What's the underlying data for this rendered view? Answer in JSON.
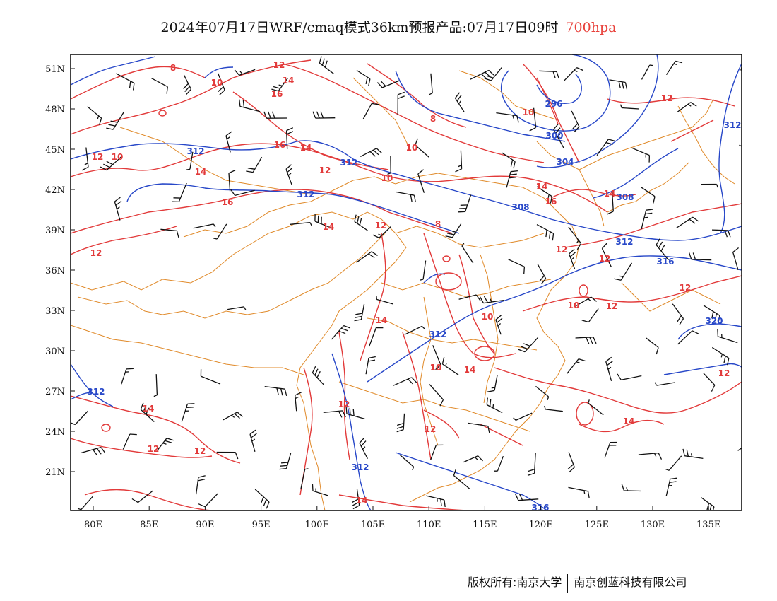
{
  "title": {
    "main": "2024年07月17日WRF/cmaq模式36km预报产品:07月17日09时",
    "level": "700hpa",
    "level_color": "#e8413b"
  },
  "axes": {
    "lat_labels": [
      "51N",
      "48N",
      "45N",
      "42N",
      "39N",
      "36N",
      "33N",
      "30N",
      "27N",
      "24N",
      "21N"
    ],
    "lon_labels": [
      "80E",
      "85E",
      "90E",
      "95E",
      "100E",
      "105E",
      "110E",
      "115E",
      "120E",
      "125E",
      "130E",
      "135E"
    ]
  },
  "contours": {
    "temperature_color": "#e23a3a",
    "height_color": "#2747c8",
    "border_color": "#e08a2a",
    "temperature_labels": [
      "8",
      "10",
      "12",
      "14",
      "16",
      "12",
      "14",
      "10",
      "16",
      "14",
      "12",
      "8",
      "10",
      "14",
      "16",
      "8",
      "10",
      "12",
      "14",
      "12",
      "12",
      "10",
      "12",
      "12",
      "10",
      "12",
      "14",
      "14",
      "12",
      "12",
      "14",
      "14",
      "12",
      "12",
      "14",
      "12",
      "10",
      "12",
      "16",
      "14",
      "10"
    ],
    "height_labels": [
      "296",
      "304",
      "308",
      "312",
      "312",
      "312",
      "308",
      "312",
      "316",
      "312",
      "320",
      "312",
      "312",
      "316",
      "312",
      "300"
    ]
  },
  "footer": {
    "left": "版权所有:南京大学",
    "right": "南京创蓝科技有限公司"
  }
}
